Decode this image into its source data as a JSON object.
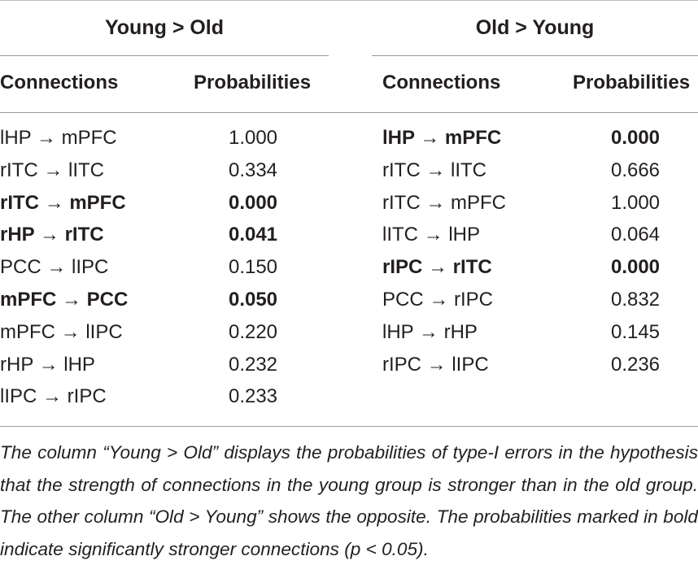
{
  "table": {
    "groups": [
      {
        "heading": "Young > Old",
        "col_connections": "Connections",
        "col_probabilities": "Probabilities",
        "rows": [
          {
            "connection": "lHP → mPFC",
            "probability": "1.000",
            "bold": false
          },
          {
            "connection": "rITC → lITC",
            "probability": "0.334",
            "bold": false
          },
          {
            "connection": "rITC → mPFC",
            "probability": "0.000",
            "bold": true
          },
          {
            "connection": "rHP → rITC",
            "probability": "0.041",
            "bold": true
          },
          {
            "connection": "PCC → lIPC",
            "probability": "0.150",
            "bold": false
          },
          {
            "connection": "mPFC → PCC",
            "probability": "0.050",
            "bold": true
          },
          {
            "connection": "mPFC → lIPC",
            "probability": "0.220",
            "bold": false
          },
          {
            "connection": "rHP → lHP",
            "probability": "0.232",
            "bold": false
          },
          {
            "connection": "lIPC → rIPC",
            "probability": "0.233",
            "bold": false
          }
        ]
      },
      {
        "heading": "Old > Young",
        "col_connections": "Connections",
        "col_probabilities": "Probabilities",
        "rows": [
          {
            "connection": "lHP → mPFC",
            "probability": "0.000",
            "bold": true
          },
          {
            "connection": "rITC → lITC",
            "probability": "0.666",
            "bold": false
          },
          {
            "connection": "rITC → mPFC",
            "probability": "1.000",
            "bold": false
          },
          {
            "connection": "lITC → lHP",
            "probability": "0.064",
            "bold": false
          },
          {
            "connection": "rIPC → rITC",
            "probability": "0.000",
            "bold": true
          },
          {
            "connection": "PCC → rIPC",
            "probability": "0.832",
            "bold": false
          },
          {
            "connection": "lHP → rHP",
            "probability": "0.145",
            "bold": false
          },
          {
            "connection": "rIPC → lIPC",
            "probability": "0.236",
            "bold": false
          }
        ]
      }
    ],
    "caption": "The column “Young > Old” displays the probabilities of type-I errors in the hypothesis that the strength of connections in the young group is stronger than in the old group. The other column “Old > Young” shows the opposite. The probabilities marked in bold indicate significantly stronger connections (p < 0.05)."
  }
}
